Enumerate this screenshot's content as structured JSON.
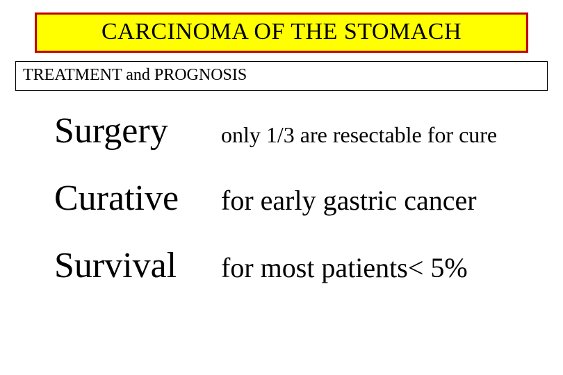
{
  "title": "CARCINOMA OF THE STOMACH",
  "subtitle": "TREATMENT and PROGNOSIS",
  "rows": [
    {
      "term": "Surgery",
      "desc": "only 1/3 are resectable for cure",
      "descClass": "desc"
    },
    {
      "term": "Curative",
      "desc": "for early gastric cancer",
      "descClass": "desc-large"
    },
    {
      "term": "Survival",
      "desc": "for most patients< 5%",
      "descClass": "desc-large"
    }
  ],
  "colors": {
    "title_bg": "#ffff00",
    "title_border": "#c00000",
    "text": "#000000",
    "page_bg": "#ffffff"
  },
  "fonts": {
    "family": "Times New Roman",
    "title_size_pt": 26,
    "subtitle_size_pt": 18,
    "term_size_pt": 39,
    "desc_small_pt": 24,
    "desc_large_pt": 30
  }
}
